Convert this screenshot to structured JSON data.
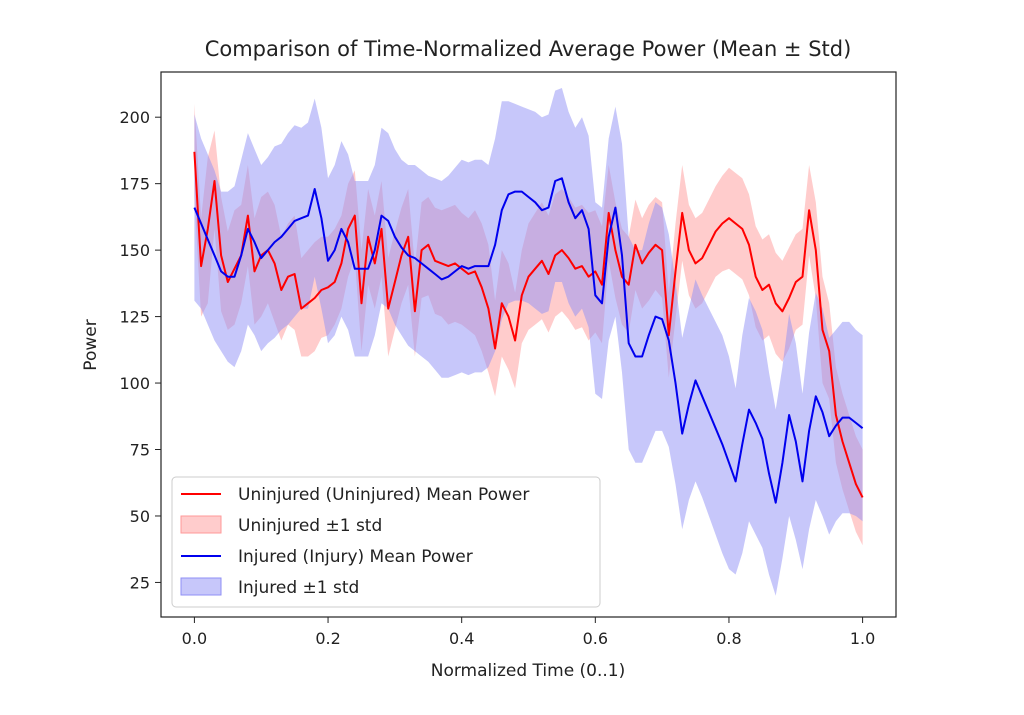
{
  "chart_data": {
    "type": "line",
    "title": "Comparison of Time-Normalized Average Power (Mean ± Std)",
    "xlabel": "Normalized Time (0..1)",
    "ylabel": "Power",
    "xlim": [
      -0.05,
      1.05
    ],
    "ylim": [
      12,
      217
    ],
    "xticks": [
      0.0,
      0.2,
      0.4,
      0.6,
      0.8,
      1.0
    ],
    "xtick_labels": [
      "0.0",
      "0.2",
      "0.4",
      "0.6",
      "0.8",
      "1.0"
    ],
    "yticks": [
      25,
      50,
      75,
      100,
      125,
      150,
      175,
      200
    ],
    "ytick_labels": [
      "25",
      "50",
      "75",
      "100",
      "125",
      "150",
      "175",
      "200"
    ],
    "grid": false,
    "legend_position": "lower-left",
    "series": [
      {
        "name": "Uninjured (Uninjured) Mean Power",
        "band_label": "Uninjured ±1 std",
        "color": "#ff0000",
        "band_color": "#ff9999",
        "x": [
          0.0,
          0.01,
          0.02,
          0.03,
          0.04,
          0.05,
          0.06,
          0.07,
          0.08,
          0.09,
          0.1,
          0.11,
          0.12,
          0.13,
          0.14,
          0.15,
          0.16,
          0.17,
          0.18,
          0.19,
          0.2,
          0.21,
          0.22,
          0.23,
          0.24,
          0.25,
          0.26,
          0.27,
          0.28,
          0.29,
          0.3,
          0.31,
          0.32,
          0.33,
          0.34,
          0.35,
          0.36,
          0.37,
          0.38,
          0.39,
          0.4,
          0.41,
          0.42,
          0.43,
          0.44,
          0.45,
          0.46,
          0.47,
          0.48,
          0.49,
          0.5,
          0.51,
          0.52,
          0.53,
          0.54,
          0.55,
          0.56,
          0.57,
          0.58,
          0.59,
          0.6,
          0.61,
          0.62,
          0.63,
          0.64,
          0.65,
          0.66,
          0.67,
          0.68,
          0.69,
          0.7,
          0.71,
          0.72,
          0.73,
          0.74,
          0.75,
          0.76,
          0.77,
          0.78,
          0.79,
          0.8,
          0.81,
          0.82,
          0.83,
          0.84,
          0.85,
          0.86,
          0.87,
          0.88,
          0.89,
          0.9,
          0.91,
          0.92,
          0.93,
          0.94,
          0.95,
          0.96,
          0.97,
          0.98,
          0.99,
          1.0
        ],
        "mean": [
          187,
          144,
          158,
          176,
          148,
          138,
          143,
          148,
          163,
          142,
          148,
          150,
          145,
          135,
          140,
          141,
          128,
          130,
          132,
          135,
          136,
          138,
          145,
          158,
          163,
          130,
          155,
          145,
          158,
          128,
          138,
          148,
          155,
          127,
          150,
          152,
          146,
          145,
          144,
          145,
          143,
          141,
          142,
          136,
          128,
          113,
          130,
          125,
          116,
          133,
          140,
          143,
          146,
          141,
          148,
          150,
          147,
          143,
          144,
          140,
          142,
          137,
          164,
          150,
          140,
          137,
          152,
          145,
          149,
          152,
          150,
          118,
          142,
          164,
          150,
          145,
          147,
          152,
          157,
          160,
          162,
          160,
          158,
          152,
          140,
          135,
          137,
          130,
          127,
          132,
          138,
          140,
          165,
          150,
          120,
          112,
          88,
          78,
          70,
          62,
          57
        ],
        "lower": [
          170,
          125,
          130,
          158,
          127,
          120,
          122,
          130,
          144,
          122,
          125,
          130,
          123,
          116,
          122,
          120,
          110,
          110,
          112,
          117,
          118,
          122,
          128,
          140,
          147,
          112,
          137,
          128,
          140,
          110,
          120,
          130,
          137,
          110,
          132,
          133,
          126,
          125,
          122,
          123,
          122,
          120,
          118,
          112,
          104,
          95,
          110,
          105,
          98,
          115,
          120,
          122,
          124,
          119,
          125,
          127,
          124,
          120,
          121,
          116,
          119,
          115,
          146,
          132,
          122,
          119,
          135,
          128,
          131,
          135,
          132,
          102,
          124,
          146,
          133,
          128,
          130,
          135,
          140,
          142,
          143,
          141,
          139,
          133,
          121,
          116,
          118,
          111,
          108,
          113,
          120,
          122,
          148,
          132,
          100,
          94,
          70,
          60,
          52,
          44,
          39
        ],
        "upper": [
          205,
          162,
          185,
          195,
          170,
          157,
          165,
          167,
          182,
          162,
          170,
          172,
          167,
          155,
          160,
          163,
          147,
          150,
          153,
          155,
          155,
          158,
          163,
          175,
          180,
          150,
          173,
          163,
          176,
          147,
          157,
          166,
          173,
          144,
          168,
          170,
          166,
          165,
          166,
          167,
          164,
          162,
          165,
          160,
          152,
          131,
          150,
          145,
          134,
          150,
          160,
          164,
          168,
          163,
          171,
          173,
          170,
          166,
          167,
          164,
          165,
          159,
          182,
          168,
          158,
          155,
          169,
          162,
          167,
          170,
          168,
          134,
          160,
          182,
          167,
          162,
          164,
          169,
          174,
          178,
          181,
          179,
          177,
          171,
          159,
          154,
          156,
          149,
          146,
          151,
          156,
          158,
          182,
          168,
          140,
          130,
          106,
          96,
          88,
          80,
          75
        ]
      },
      {
        "name": "Injured (Injury) Mean Power",
        "band_label": "Injured ±1 std",
        "color": "#0000ee",
        "band_color": "#8f8ff5",
        "x": [
          0.0,
          0.01,
          0.02,
          0.03,
          0.04,
          0.05,
          0.06,
          0.07,
          0.08,
          0.09,
          0.1,
          0.11,
          0.12,
          0.13,
          0.14,
          0.15,
          0.16,
          0.17,
          0.18,
          0.19,
          0.2,
          0.21,
          0.22,
          0.23,
          0.24,
          0.25,
          0.26,
          0.27,
          0.28,
          0.29,
          0.3,
          0.31,
          0.32,
          0.33,
          0.34,
          0.35,
          0.36,
          0.37,
          0.38,
          0.39,
          0.4,
          0.41,
          0.42,
          0.43,
          0.44,
          0.45,
          0.46,
          0.47,
          0.48,
          0.49,
          0.5,
          0.51,
          0.52,
          0.53,
          0.54,
          0.55,
          0.56,
          0.57,
          0.58,
          0.59,
          0.6,
          0.61,
          0.62,
          0.63,
          0.64,
          0.65,
          0.66,
          0.67,
          0.68,
          0.69,
          0.7,
          0.71,
          0.72,
          0.73,
          0.74,
          0.75,
          0.76,
          0.77,
          0.78,
          0.79,
          0.8,
          0.81,
          0.82,
          0.83,
          0.84,
          0.85,
          0.86,
          0.87,
          0.88,
          0.89,
          0.9,
          0.91,
          0.92,
          0.93,
          0.94,
          0.95,
          0.96,
          0.97,
          0.98,
          0.99,
          1.0
        ],
        "mean": [
          166,
          160,
          154,
          148,
          142,
          140,
          140,
          148,
          158,
          153,
          147,
          150,
          153,
          155,
          158,
          161,
          162,
          163,
          173,
          162,
          146,
          150,
          158,
          153,
          143,
          143,
          143,
          150,
          163,
          161,
          155,
          151,
          148,
          147,
          145,
          143,
          141,
          139,
          140,
          142,
          144,
          143,
          144,
          144,
          144,
          152,
          165,
          171,
          172,
          172,
          170,
          168,
          165,
          166,
          176,
          177,
          168,
          162,
          165,
          158,
          133,
          130,
          155,
          166,
          148,
          115,
          110,
          110,
          118,
          125,
          124,
          116,
          100,
          81,
          92,
          101,
          95,
          89,
          83,
          77,
          70,
          63,
          77,
          90,
          85,
          79,
          66,
          55,
          70,
          88,
          78,
          63,
          82,
          95,
          89,
          80,
          84,
          87,
          87,
          85,
          83
        ],
        "lower": [
          131,
          128,
          122,
          116,
          112,
          108,
          106,
          112,
          122,
          118,
          112,
          115,
          117,
          120,
          122,
          125,
          128,
          128,
          140,
          128,
          115,
          118,
          125,
          120,
          110,
          110,
          110,
          118,
          130,
          128,
          122,
          118,
          114,
          112,
          110,
          108,
          105,
          102,
          102,
          103,
          104,
          103,
          104,
          104,
          106,
          112,
          124,
          130,
          131,
          131,
          130,
          128,
          126,
          127,
          138,
          138,
          130,
          125,
          128,
          121,
          96,
          94,
          116,
          125,
          104,
          75,
          70,
          70,
          76,
          82,
          82,
          76,
          62,
          45,
          56,
          63,
          57,
          50,
          43,
          36,
          30,
          28,
          36,
          48,
          43,
          38,
          28,
          20,
          34,
          50,
          41,
          30,
          45,
          56,
          50,
          43,
          48,
          51,
          51,
          50,
          48
        ],
        "upper": [
          201,
          192,
          186,
          180,
          172,
          172,
          174,
          184,
          194,
          188,
          182,
          185,
          189,
          190,
          194,
          197,
          196,
          198,
          207,
          196,
          177,
          182,
          191,
          186,
          176,
          176,
          176,
          182,
          196,
          194,
          188,
          184,
          182,
          182,
          180,
          178,
          177,
          176,
          178,
          181,
          184,
          183,
          184,
          184,
          182,
          192,
          206,
          206,
          205,
          204,
          203,
          202,
          200,
          201,
          210,
          211,
          202,
          196,
          200,
          193,
          168,
          166,
          192,
          204,
          190,
          155,
          150,
          150,
          160,
          168,
          166,
          156,
          138,
          117,
          128,
          139,
          133,
          128,
          123,
          118,
          110,
          98,
          118,
          132,
          127,
          120,
          104,
          90,
          106,
          126,
          115,
          96,
          119,
          134,
          128,
          117,
          120,
          123,
          123,
          120,
          118
        ]
      }
    ]
  }
}
